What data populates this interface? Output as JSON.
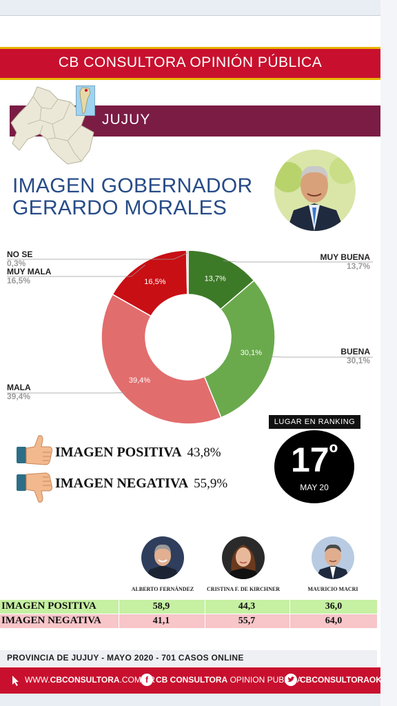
{
  "header": {
    "title": "CB CONSULTORA OPINIÓN PÚBLICA"
  },
  "region": {
    "name": "JUJUY"
  },
  "subject": {
    "title_line1": "IMAGEN GOBERNADOR",
    "title_line2": "GERARDO MORALES"
  },
  "chart_data": {
    "type": "pie",
    "style": "donut",
    "slices": [
      {
        "name": "MUY BUENA",
        "value": 13.7,
        "label": "13,7%",
        "color": "#3d7a28"
      },
      {
        "name": "BUENA",
        "value": 30.1,
        "label": "30,1%",
        "color": "#6aaa4c"
      },
      {
        "name": "MALA",
        "value": 39.4,
        "label": "39,4%",
        "color": "#e26d6d"
      },
      {
        "name": "MUY MALA",
        "value": 16.5,
        "label": "16,5%",
        "color": "#c80f14"
      },
      {
        "name": "NO SE",
        "value": 0.3,
        "label": "0,3%",
        "color": "#9a9a9a"
      }
    ]
  },
  "summary": {
    "positive_label": "IMAGEN POSITIVA",
    "positive_value": "43,8%",
    "negative_label": "IMAGEN NEGATIVA",
    "negative_value": "55,9%"
  },
  "ranking": {
    "title": "LUGAR EN RANKING",
    "position": "17",
    "suffix": "º",
    "date": "MAY 20"
  },
  "comparison": {
    "candidates": [
      "ALBERTO FERNÁNDEZ",
      "CRISTINA F. DE KIRCHNER",
      "MAURICIO MACRI"
    ],
    "rows": [
      {
        "label": "IMAGEN POSITIVA",
        "values": [
          "58,9",
          "44,3",
          "36,0"
        ]
      },
      {
        "label": "IMAGEN NEGATIVA",
        "values": [
          "41,1",
          "55,7",
          "64,0"
        ]
      }
    ]
  },
  "footer": {
    "info": "PROVINCIA DE JUJUY - MAYO 2020 -  701 CASOS ONLINE",
    "web_prefix": "WWW.",
    "web_brand": "CBCONSULTORA",
    "web_suffix": ".COM.AR",
    "facebook_brand": "CB CONSULTORA",
    "facebook_suffix": " OPINION PUBLICA",
    "twitter": "CBCONSULTORAOK"
  },
  "colors": {
    "header_red": "#c8102e",
    "region_bar": "#7b1c45",
    "title_blue": "#274b87",
    "positive_row": "#c6f0a2",
    "negative_row": "#f8c5c9"
  },
  "icons": [
    "thumbs-up-icon",
    "thumbs-down-icon",
    "cursor-icon",
    "facebook-icon",
    "twitter-icon"
  ]
}
